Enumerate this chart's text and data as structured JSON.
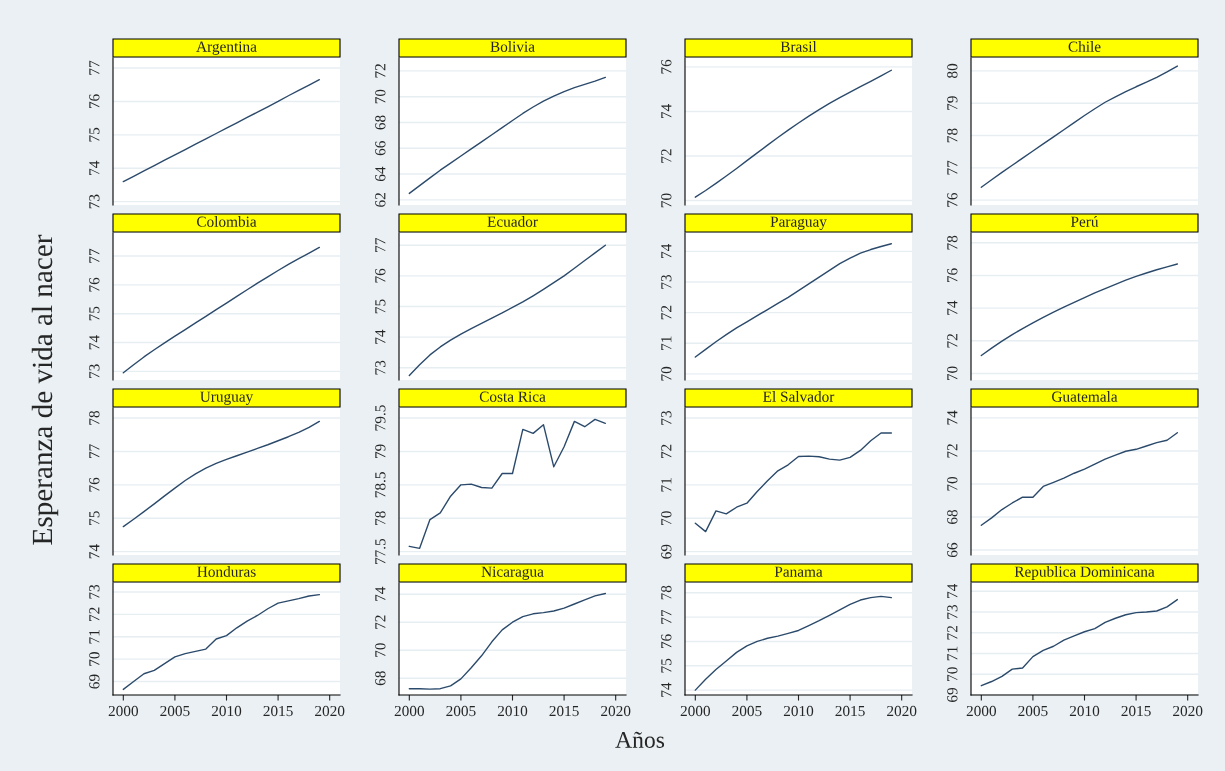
{
  "chart_data": [
    {
      "type": "line",
      "title": "Argentina",
      "ylabel": "Esperanza de vida al nacer",
      "annotations": [
        "Años"
      ],
      "x": [
        2000,
        2001,
        2002,
        2003,
        2004,
        2005,
        2006,
        2007,
        2008,
        2009,
        2010,
        2011,
        2012,
        2013,
        2014,
        2015,
        2016,
        2017,
        2018,
        2019
      ],
      "series": [
        {
          "color": "#2b4a6b",
          "values": [
            73.6,
            73.76,
            73.92,
            74.08,
            74.24,
            74.4,
            74.56,
            74.72,
            74.88,
            75.04,
            75.2,
            75.36,
            75.52,
            75.68,
            75.84,
            76.0,
            76.17,
            76.33,
            76.49,
            76.65
          ]
        }
      ],
      "xlim": [
        1999,
        2021
      ],
      "xticks": [
        2000,
        2005,
        2010,
        2015,
        2020
      ],
      "ylim": [
        72.9,
        77.3
      ],
      "yticks": [
        73,
        74,
        75,
        76,
        77
      ],
      "grid": "y",
      "tick_labels": "y"
    },
    {
      "type": "line",
      "title": "Bolivia",
      "x": [
        2000,
        2001,
        2002,
        2003,
        2004,
        2005,
        2006,
        2007,
        2008,
        2009,
        2010,
        2011,
        2012,
        2013,
        2014,
        2015,
        2016,
        2017,
        2018,
        2019
      ],
      "series": [
        {
          "color": "#2b4a6b",
          "values": [
            62.5,
            63.1,
            63.7,
            64.3,
            64.85,
            65.4,
            65.95,
            66.5,
            67.05,
            67.6,
            68.15,
            68.7,
            69.2,
            69.65,
            70.05,
            70.4,
            70.7,
            70.95,
            71.2,
            71.5
          ]
        }
      ],
      "xlim": [
        1999,
        2021
      ],
      "xticks": [
        2000,
        2005,
        2010,
        2015,
        2020
      ],
      "ylim": [
        61.6,
        73.0
      ],
      "yticks": [
        62,
        64,
        66,
        68,
        70,
        72
      ],
      "grid": "y",
      "tick_labels": "y"
    },
    {
      "type": "line",
      "title": "Brasil",
      "x": [
        2000,
        2001,
        2002,
        2003,
        2004,
        2005,
        2006,
        2007,
        2008,
        2009,
        2010,
        2011,
        2012,
        2013,
        2014,
        2015,
        2016,
        2017,
        2018,
        2019
      ],
      "series": [
        {
          "color": "#2b4a6b",
          "values": [
            70.15,
            70.45,
            70.77,
            71.1,
            71.44,
            71.79,
            72.14,
            72.49,
            72.83,
            73.16,
            73.48,
            73.79,
            74.08,
            74.36,
            74.62,
            74.87,
            75.11,
            75.35,
            75.6,
            75.85
          ]
        }
      ],
      "xlim": [
        1999,
        2021
      ],
      "xticks": [
        2000,
        2005,
        2010,
        2015,
        2020
      ],
      "ylim": [
        69.8,
        76.4
      ],
      "yticks": [
        70,
        72,
        74,
        76
      ],
      "grid": "y",
      "tick_labels": "y"
    },
    {
      "type": "line",
      "title": "Chile",
      "x": [
        2000,
        2001,
        2002,
        2003,
        2004,
        2005,
        2006,
        2007,
        2008,
        2009,
        2010,
        2011,
        2012,
        2013,
        2014,
        2015,
        2016,
        2017,
        2018,
        2019
      ],
      "series": [
        {
          "color": "#2b4a6b",
          "values": [
            76.4,
            76.63,
            76.86,
            77.08,
            77.3,
            77.52,
            77.74,
            77.96,
            78.18,
            78.4,
            78.62,
            78.83,
            79.03,
            79.2,
            79.36,
            79.51,
            79.65,
            79.8,
            79.97,
            80.15
          ]
        }
      ],
      "xlim": [
        1999,
        2021
      ],
      "xticks": [
        2000,
        2005,
        2010,
        2015,
        2020
      ],
      "ylim": [
        75.85,
        80.4
      ],
      "yticks": [
        76,
        77,
        78,
        79,
        80
      ],
      "grid": "y",
      "tick_labels": "y"
    },
    {
      "type": "line",
      "title": "Colombia",
      "x": [
        2000,
        2001,
        2002,
        2003,
        2004,
        2005,
        2006,
        2007,
        2008,
        2009,
        2010,
        2011,
        2012,
        2013,
        2014,
        2015,
        2016,
        2017,
        2018,
        2019
      ],
      "series": [
        {
          "color": "#2b4a6b",
          "values": [
            72.95,
            73.23,
            73.5,
            73.75,
            73.99,
            74.22,
            74.45,
            74.68,
            74.91,
            75.14,
            75.37,
            75.6,
            75.83,
            76.06,
            76.28,
            76.5,
            76.71,
            76.91,
            77.1,
            77.3
          ]
        }
      ],
      "xlim": [
        1999,
        2021
      ],
      "xticks": [
        2000,
        2005,
        2010,
        2015,
        2020
      ],
      "ylim": [
        72.7,
        77.8
      ],
      "yticks": [
        73,
        74,
        75,
        76,
        77
      ],
      "grid": "y",
      "tick_labels": "y"
    },
    {
      "type": "line",
      "title": "Ecuador",
      "x": [
        2000,
        2001,
        2002,
        2003,
        2004,
        2005,
        2006,
        2007,
        2008,
        2009,
        2010,
        2011,
        2012,
        2013,
        2014,
        2015,
        2016,
        2017,
        2018,
        2019
      ],
      "series": [
        {
          "color": "#2b4a6b",
          "values": [
            72.75,
            73.1,
            73.42,
            73.68,
            73.9,
            74.1,
            74.28,
            74.45,
            74.62,
            74.79,
            74.97,
            75.15,
            75.35,
            75.56,
            75.78,
            76.0,
            76.25,
            76.5,
            76.75,
            77.0
          ]
        }
      ],
      "xlim": [
        1999,
        2021
      ],
      "xticks": [
        2000,
        2005,
        2010,
        2015,
        2020
      ],
      "ylim": [
        72.6,
        77.4
      ],
      "yticks": [
        73,
        74,
        75,
        76,
        77
      ],
      "grid": "y",
      "tick_labels": "y"
    },
    {
      "type": "line",
      "title": "Paraguay",
      "x": [
        2000,
        2001,
        2002,
        2003,
        2004,
        2005,
        2006,
        2007,
        2008,
        2009,
        2010,
        2011,
        2012,
        2013,
        2014,
        2015,
        2016,
        2017,
        2018,
        2019
      ],
      "series": [
        {
          "color": "#2b4a6b",
          "values": [
            70.55,
            70.8,
            71.05,
            71.28,
            71.5,
            71.7,
            71.9,
            72.1,
            72.3,
            72.5,
            72.72,
            72.94,
            73.16,
            73.38,
            73.6,
            73.78,
            73.94,
            74.06,
            74.16,
            74.25
          ]
        }
      ],
      "xlim": [
        1999,
        2021
      ],
      "xticks": [
        2000,
        2005,
        2010,
        2015,
        2020
      ],
      "ylim": [
        69.8,
        74.6
      ],
      "yticks": [
        70,
        71,
        72,
        73,
        74
      ],
      "grid": "y",
      "tick_labels": "y"
    },
    {
      "type": "line",
      "title": "Perú",
      "x": [
        2000,
        2001,
        2002,
        2003,
        2004,
        2005,
        2006,
        2007,
        2008,
        2009,
        2010,
        2011,
        2012,
        2013,
        2014,
        2015,
        2016,
        2017,
        2018,
        2019
      ],
      "series": [
        {
          "color": "#2b4a6b",
          "values": [
            71.1,
            71.55,
            71.98,
            72.38,
            72.75,
            73.1,
            73.43,
            73.75,
            74.06,
            74.36,
            74.65,
            74.93,
            75.2,
            75.46,
            75.71,
            75.94,
            76.15,
            76.35,
            76.53,
            76.7
          ]
        }
      ],
      "xlim": [
        1999,
        2021
      ],
      "xticks": [
        2000,
        2005,
        2010,
        2015,
        2020
      ],
      "ylim": [
        69.6,
        78.6
      ],
      "yticks": [
        70,
        72,
        74,
        76,
        78
      ],
      "grid": "y",
      "tick_labels": "y"
    },
    {
      "type": "line",
      "title": "Uruguay",
      "x": [
        2000,
        2001,
        2002,
        2003,
        2004,
        2005,
        2006,
        2007,
        2008,
        2009,
        2010,
        2011,
        2012,
        2013,
        2014,
        2015,
        2016,
        2017,
        2018,
        2019
      ],
      "series": [
        {
          "color": "#2b4a6b",
          "values": [
            74.75,
            74.97,
            75.2,
            75.43,
            75.67,
            75.9,
            76.13,
            76.33,
            76.5,
            76.64,
            76.76,
            76.87,
            76.98,
            77.09,
            77.2,
            77.32,
            77.44,
            77.57,
            77.72,
            77.9
          ]
        }
      ],
      "xlim": [
        1999,
        2021
      ],
      "xticks": [
        2000,
        2005,
        2010,
        2015,
        2020
      ],
      "ylim": [
        73.9,
        78.3
      ],
      "yticks": [
        74,
        75,
        76,
        77,
        78
      ],
      "grid": "y",
      "tick_labels": "y"
    },
    {
      "type": "line",
      "title": "Costa Rica",
      "x": [
        2000,
        2001,
        2002,
        2003,
        2004,
        2005,
        2006,
        2007,
        2008,
        2009,
        2010,
        2011,
        2012,
        2013,
        2014,
        2015,
        2016,
        2017,
        2018,
        2019
      ],
      "series": [
        {
          "color": "#2b4a6b",
          "values": [
            77.58,
            77.55,
            77.98,
            78.08,
            78.33,
            78.5,
            78.51,
            78.46,
            78.45,
            78.67,
            78.67,
            79.33,
            79.27,
            79.4,
            78.77,
            79.07,
            79.45,
            79.37,
            79.48,
            79.42
          ]
        }
      ],
      "xlim": [
        1999,
        2021
      ],
      "xticks": [
        2000,
        2005,
        2010,
        2015,
        2020
      ],
      "ylim": [
        77.45,
        79.65
      ],
      "yticks": [
        77.5,
        78,
        78.5,
        79,
        79.5
      ],
      "grid": "y",
      "tick_labels": "y"
    },
    {
      "type": "line",
      "title": "El Salvador",
      "x": [
        2000,
        2001,
        2002,
        2003,
        2004,
        2005,
        2006,
        2007,
        2008,
        2009,
        2010,
        2011,
        2012,
        2013,
        2014,
        2015,
        2016,
        2017,
        2018,
        2019
      ],
      "series": [
        {
          "color": "#2b4a6b",
          "values": [
            69.85,
            69.6,
            70.22,
            70.13,
            70.33,
            70.45,
            70.8,
            71.12,
            71.42,
            71.6,
            71.85,
            71.86,
            71.84,
            71.77,
            71.74,
            71.82,
            72.03,
            72.32,
            72.55,
            72.55
          ]
        }
      ],
      "xlim": [
        1999,
        2021
      ],
      "xticks": [
        2000,
        2005,
        2010,
        2015,
        2020
      ],
      "ylim": [
        68.9,
        73.3
      ],
      "yticks": [
        69,
        70,
        71,
        72,
        73
      ],
      "grid": "y",
      "tick_labels": "y"
    },
    {
      "type": "line",
      "title": "Guatemala",
      "x": [
        2000,
        2001,
        2002,
        2003,
        2004,
        2005,
        2006,
        2007,
        2008,
        2009,
        2010,
        2011,
        2012,
        2013,
        2014,
        2015,
        2016,
        2017,
        2018,
        2019
      ],
      "series": [
        {
          "color": "#2b4a6b",
          "values": [
            67.5,
            67.95,
            68.45,
            68.85,
            69.2,
            69.2,
            69.85,
            70.1,
            70.35,
            70.65,
            70.9,
            71.2,
            71.5,
            71.75,
            71.98,
            72.1,
            72.3,
            72.5,
            72.65,
            73.1
          ]
        }
      ],
      "xlim": [
        1999,
        2021
      ],
      "xticks": [
        2000,
        2005,
        2010,
        2015,
        2020
      ],
      "ylim": [
        65.7,
        74.6
      ],
      "yticks": [
        66,
        68,
        70,
        72,
        74
      ],
      "grid": "y",
      "tick_labels": "y"
    },
    {
      "type": "line",
      "title": "Honduras",
      "x": [
        2000,
        2001,
        2002,
        2003,
        2004,
        2005,
        2006,
        2007,
        2008,
        2009,
        2010,
        2011,
        2012,
        2013,
        2014,
        2015,
        2016,
        2017,
        2018,
        2019
      ],
      "series": [
        {
          "color": "#2b4a6b",
          "values": [
            68.65,
            69.0,
            69.35,
            69.5,
            69.8,
            70.1,
            70.25,
            70.35,
            70.45,
            70.9,
            71.05,
            71.4,
            71.7,
            71.95,
            72.25,
            72.5,
            72.6,
            72.7,
            72.82,
            72.88
          ]
        }
      ],
      "xlim": [
        1999,
        2021
      ],
      "xticks": [
        2000,
        2005,
        2010,
        2015,
        2020
      ],
      "ylim": [
        68.4,
        73.4
      ],
      "yticks": [
        69,
        70,
        71,
        72,
        73
      ],
      "grid": "y"
    },
    {
      "type": "line",
      "title": "Nicaragua",
      "x": [
        2000,
        2001,
        2002,
        2003,
        2004,
        2005,
        2006,
        2007,
        2008,
        2009,
        2010,
        2011,
        2012,
        2013,
        2014,
        2015,
        2016,
        2017,
        2018,
        2019
      ],
      "series": [
        {
          "color": "#2b4a6b",
          "values": [
            67.25,
            67.25,
            67.22,
            67.25,
            67.45,
            67.95,
            68.75,
            69.6,
            70.6,
            71.45,
            72.0,
            72.4,
            72.6,
            72.68,
            72.8,
            73.0,
            73.3,
            73.6,
            73.88,
            74.05
          ]
        }
      ],
      "xlim": [
        1999,
        2021
      ],
      "xticks": [
        2000,
        2005,
        2010,
        2015,
        2020
      ],
      "ylim": [
        66.8,
        74.8
      ],
      "yticks": [
        68,
        70,
        72,
        74
      ],
      "grid": "y"
    },
    {
      "type": "line",
      "title": "Panama",
      "x": [
        2000,
        2001,
        2002,
        2003,
        2004,
        2005,
        2006,
        2007,
        2008,
        2009,
        2010,
        2011,
        2012,
        2013,
        2014,
        2015,
        2016,
        2017,
        2018,
        2019
      ],
      "series": [
        {
          "color": "#2b4a6b",
          "values": [
            74.0,
            74.45,
            74.85,
            75.2,
            75.55,
            75.82,
            76.0,
            76.13,
            76.22,
            76.33,
            76.45,
            76.65,
            76.85,
            77.07,
            77.3,
            77.52,
            77.7,
            77.8,
            77.85,
            77.8
          ]
        }
      ],
      "xlim": [
        1999,
        2021
      ],
      "xticks": [
        2000,
        2005,
        2010,
        2015,
        2020
      ],
      "ylim": [
        73.8,
        78.4
      ],
      "yticks": [
        74,
        75,
        76,
        77,
        78
      ],
      "grid": "y"
    },
    {
      "type": "line",
      "title": "Republica Dominicana",
      "x": [
        2000,
        2001,
        2002,
        2003,
        2004,
        2005,
        2006,
        2007,
        2008,
        2009,
        2010,
        2011,
        2012,
        2013,
        2014,
        2015,
        2016,
        2017,
        2018,
        2019
      ],
      "series": [
        {
          "color": "#2b4a6b",
          "values": [
            69.45,
            69.65,
            69.9,
            70.25,
            70.3,
            70.85,
            71.15,
            71.35,
            71.65,
            71.85,
            72.05,
            72.2,
            72.5,
            72.7,
            72.87,
            72.97,
            73.0,
            73.05,
            73.25,
            73.6
          ]
        }
      ],
      "xlim": [
        1999,
        2021
      ],
      "xticks": [
        2000,
        2005,
        2010,
        2015,
        2020
      ],
      "ylim": [
        69.0,
        74.4
      ],
      "yticks": [
        69,
        70,
        71,
        72,
        73,
        74
      ],
      "grid": "y"
    }
  ]
}
